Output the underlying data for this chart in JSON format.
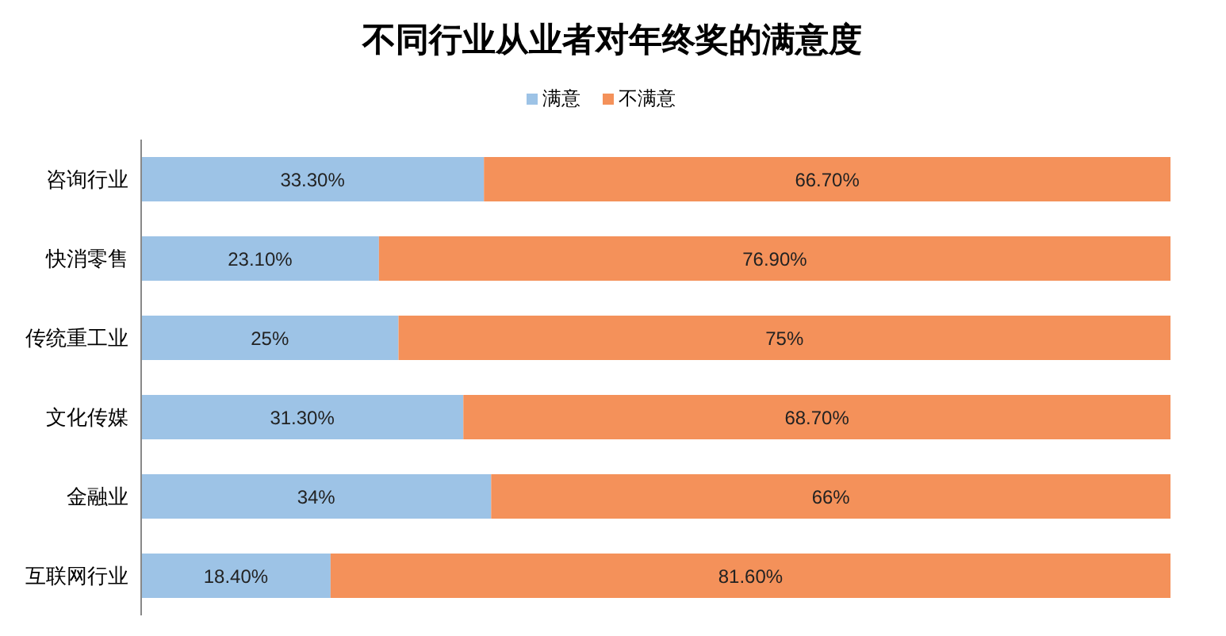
{
  "chart_data": {
    "type": "bar",
    "orientation": "horizontal",
    "stacked": true,
    "title": "不同行业从业者对年终奖的满意度",
    "categories": [
      "咨询行业",
      "快消零售",
      "传统重工业",
      "文化传媒",
      "金融业",
      "互联网行业"
    ],
    "series": [
      {
        "name": "满意",
        "color": "#9dc3e6",
        "values": [
          33.3,
          23.1,
          25,
          31.3,
          34,
          18.4
        ],
        "value_labels": [
          "33.30%",
          "23.10%",
          "25%",
          "31.30%",
          "34%",
          "18.40%"
        ]
      },
      {
        "name": "不满意",
        "color": "#f4915a",
        "values": [
          66.7,
          76.9,
          75,
          68.7,
          66,
          81.6
        ],
        "value_labels": [
          "66.70%",
          "76.90%",
          "75%",
          "68.70%",
          "66%",
          "81.60%"
        ]
      }
    ],
    "xlim": [
      0,
      100
    ],
    "tick_labels": "y",
    "legend": "top"
  }
}
